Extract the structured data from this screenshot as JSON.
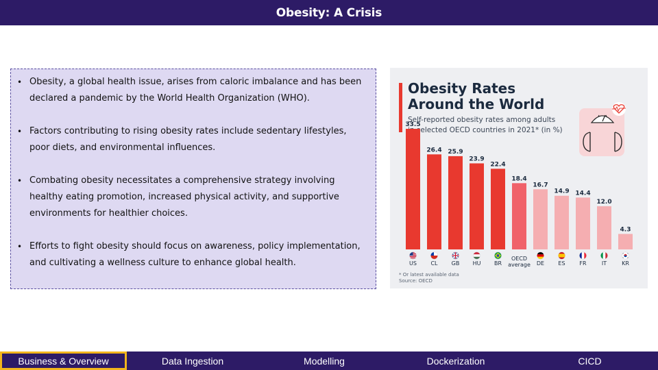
{
  "page": {
    "title": "Obesity: A Crisis"
  },
  "bullets": [
    "Obesity, a global health issue, arises from caloric imbalance and has been declared a pandemic by the World Health Organization (WHO).",
    "Factors contributing to rising obesity rates include sedentary lifestyles, poor diets, and environmental influences.",
    "Combating obesity necessitates a comprehensive strategy involving healthy eating promotion, increased physical activity, and supportive environments for healthier choices.",
    "Efforts to fight obesity should focus on awareness, policy implementation, and cultivating a wellness culture to enhance global health."
  ],
  "bullet_symbol": "•",
  "infographic": {
    "title_line1": "Obesity Rates",
    "title_line2": "Around the World",
    "subtitle_line1": "Self-reported obesity rates among adults",
    "subtitle_line2": "in selected OECD countries in 2021* (in %)",
    "footnote": "* Or latest available data",
    "source": "Source: OECD",
    "icon": "scale-with-heart-icon"
  },
  "chart_data": {
    "type": "bar",
    "categories": [
      "US",
      "CL",
      "GB",
      "HU",
      "BR",
      "OECD average",
      "DE",
      "ES",
      "FR",
      "IT",
      "KR"
    ],
    "values": [
      33.5,
      26.4,
      25.9,
      23.9,
      22.4,
      18.4,
      16.7,
      14.9,
      14.4,
      12.0,
      4.3
    ],
    "value_labels": [
      "33.5",
      "26.4",
      "25.9",
      "23.9",
      "22.4",
      "18.4",
      "16.7",
      "14.9",
      "14.4",
      "12.0",
      "4.3"
    ],
    "flags": [
      "us-flag-icon",
      "cl-flag-icon",
      "gb-flag-icon",
      "hu-flag-icon",
      "br-flag-icon",
      "",
      "de-flag-icon",
      "es-flag-icon",
      "fr-flag-icon",
      "it-flag-icon",
      "kr-flag-icon"
    ],
    "bar_colors": [
      "#e8392f",
      "#e8392f",
      "#e8392f",
      "#e8392f",
      "#e8392f",
      "#f0626a",
      "#f5aeb1",
      "#f5aeb1",
      "#f5aeb1",
      "#f5aeb1",
      "#f5aeb1"
    ],
    "ylim": [
      0,
      33.5
    ],
    "grid": false,
    "legend": "none"
  },
  "nav": {
    "tabs": [
      {
        "label": "Business & Overview",
        "active": true
      },
      {
        "label": "Data Ingestion",
        "active": false
      },
      {
        "label": "Modelling",
        "active": false
      },
      {
        "label": "Dockerization",
        "active": false
      },
      {
        "label": "CICD",
        "active": false
      }
    ]
  },
  "colors": {
    "header_bg": "#2d1b66",
    "text_box_bg": "#ded9f2",
    "active_tab_border": "#f2b51c",
    "chart_accent": "#e8392f"
  }
}
